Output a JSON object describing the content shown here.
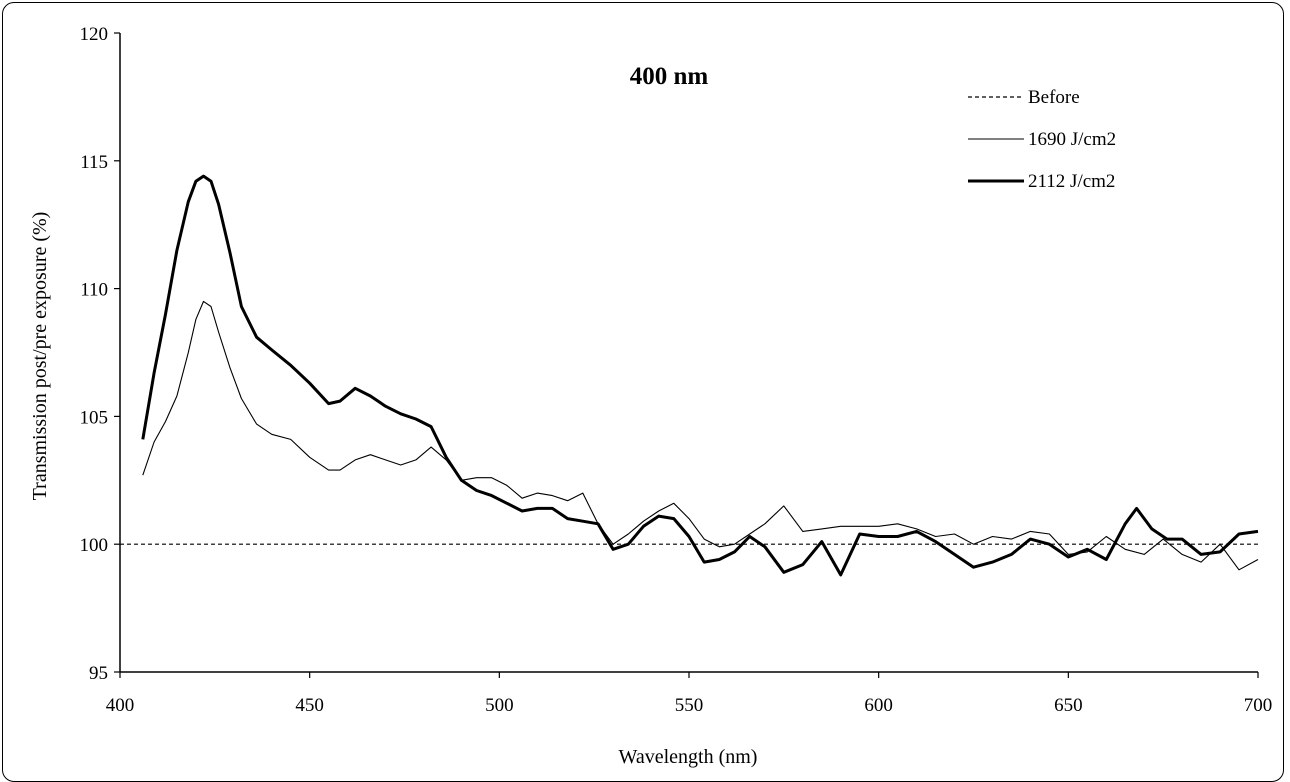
{
  "chart_data": {
    "type": "line",
    "title": "400 nm",
    "xlabel": "Wavelength (nm)",
    "ylabel": "Transmission post/pre exposure (%)",
    "xlim": [
      400,
      700
    ],
    "ylim": [
      95,
      120
    ],
    "xticks": [
      400,
      450,
      500,
      550,
      600,
      650,
      700
    ],
    "yticks": [
      95,
      100,
      105,
      110,
      115,
      120
    ],
    "grid": false,
    "legend_position": "top-right",
    "series": [
      {
        "name": "Before",
        "style": "dashed",
        "x": [
          400,
          700
        ],
        "y": [
          100,
          100
        ]
      },
      {
        "name": "1690 J/cm2",
        "style": "thin",
        "x": [
          406,
          409,
          412,
          415,
          418,
          420,
          422,
          424,
          426,
          429,
          432,
          436,
          440,
          445,
          450,
          455,
          458,
          462,
          466,
          470,
          474,
          478,
          482,
          486,
          490,
          494,
          498,
          502,
          506,
          510,
          514,
          518,
          522,
          526,
          530,
          534,
          538,
          542,
          546,
          550,
          554,
          558,
          562,
          566,
          570,
          575,
          580,
          585,
          590,
          595,
          600,
          605,
          610,
          615,
          620,
          625,
          630,
          635,
          640,
          645,
          650,
          655,
          660,
          665,
          670,
          675,
          680,
          685,
          690,
          695,
          700
        ],
        "y": [
          102.7,
          104.0,
          104.8,
          105.8,
          107.5,
          108.8,
          109.5,
          109.3,
          108.3,
          106.9,
          105.7,
          104.7,
          104.3,
          104.1,
          103.4,
          102.9,
          102.9,
          103.3,
          103.5,
          103.3,
          103.1,
          103.3,
          103.8,
          103.3,
          102.5,
          102.6,
          102.6,
          102.3,
          101.8,
          102.0,
          101.9,
          101.7,
          102.0,
          100.8,
          100.0,
          100.4,
          100.9,
          101.3,
          101.6,
          101.0,
          100.2,
          99.9,
          100.0,
          100.4,
          100.8,
          101.5,
          100.5,
          100.6,
          100.7,
          100.7,
          100.7,
          100.8,
          100.6,
          100.3,
          100.4,
          100.0,
          100.3,
          100.2,
          100.5,
          100.4,
          99.6,
          99.7,
          100.3,
          99.8,
          99.6,
          100.2,
          99.6,
          99.3,
          100.0,
          99.0,
          99.4
        ]
      },
      {
        "name": "2112 J/cm2",
        "style": "thick",
        "x": [
          406,
          409,
          412,
          415,
          418,
          420,
          422,
          424,
          426,
          429,
          432,
          436,
          440,
          445,
          450,
          455,
          458,
          462,
          466,
          470,
          474,
          478,
          482,
          486,
          490,
          494,
          498,
          502,
          506,
          510,
          514,
          518,
          522,
          526,
          530,
          534,
          538,
          542,
          546,
          550,
          554,
          558,
          562,
          566,
          570,
          575,
          580,
          585,
          590,
          595,
          600,
          605,
          610,
          615,
          620,
          625,
          630,
          635,
          640,
          645,
          650,
          655,
          660,
          665,
          668,
          672,
          676,
          680,
          685,
          690,
          695,
          700
        ],
        "y": [
          104.1,
          106.7,
          109.0,
          111.5,
          113.4,
          114.2,
          114.4,
          114.2,
          113.3,
          111.4,
          109.3,
          108.1,
          107.6,
          107.0,
          106.3,
          105.5,
          105.6,
          106.1,
          105.8,
          105.4,
          105.1,
          104.9,
          104.6,
          103.4,
          102.5,
          102.1,
          101.9,
          101.6,
          101.3,
          101.4,
          101.4,
          101.0,
          100.9,
          100.8,
          99.8,
          100.0,
          100.7,
          101.1,
          101.0,
          100.3,
          99.3,
          99.4,
          99.7,
          100.3,
          99.9,
          98.9,
          99.2,
          100.1,
          98.8,
          100.4,
          100.3,
          100.3,
          100.5,
          100.1,
          99.6,
          99.1,
          99.3,
          99.6,
          100.2,
          100.0,
          99.5,
          99.8,
          99.4,
          100.8,
          101.4,
          100.6,
          100.2,
          100.2,
          99.6,
          99.7,
          100.4,
          100.5
        ]
      }
    ]
  }
}
